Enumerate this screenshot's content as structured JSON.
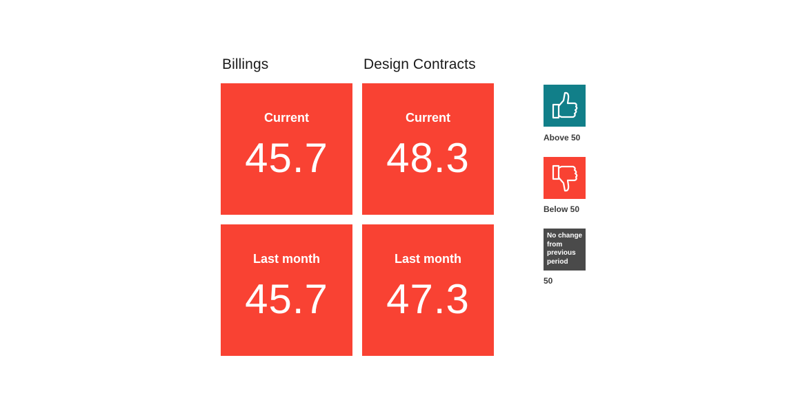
{
  "chart_data": {
    "type": "table",
    "columns": [
      "Billings",
      "Design Contracts"
    ],
    "rows": [
      "Current",
      "Last month"
    ],
    "values": {
      "billings": {
        "current": "45.7",
        "last_month": "45.7"
      },
      "design_contracts": {
        "current": "48.3",
        "last_month": "47.3"
      }
    },
    "legend": [
      {
        "key": "above",
        "icon": "thumbs-up-icon",
        "label": "Above 50",
        "color": "#117f89"
      },
      {
        "key": "below",
        "icon": "thumbs-down-icon",
        "label": "Below 50",
        "color": "#f94233"
      },
      {
        "key": "same",
        "box_text": "No change from previous period",
        "label": "50",
        "color": "#4a4a4a"
      }
    ]
  },
  "headers": {
    "billings": "Billings",
    "design_contracts": "Design Contracts"
  },
  "labels": {
    "current": "Current",
    "last_month": "Last month"
  },
  "colors": {
    "tile_below": "#f94233",
    "above": "#117f89",
    "no_change": "#4a4a4a"
  }
}
